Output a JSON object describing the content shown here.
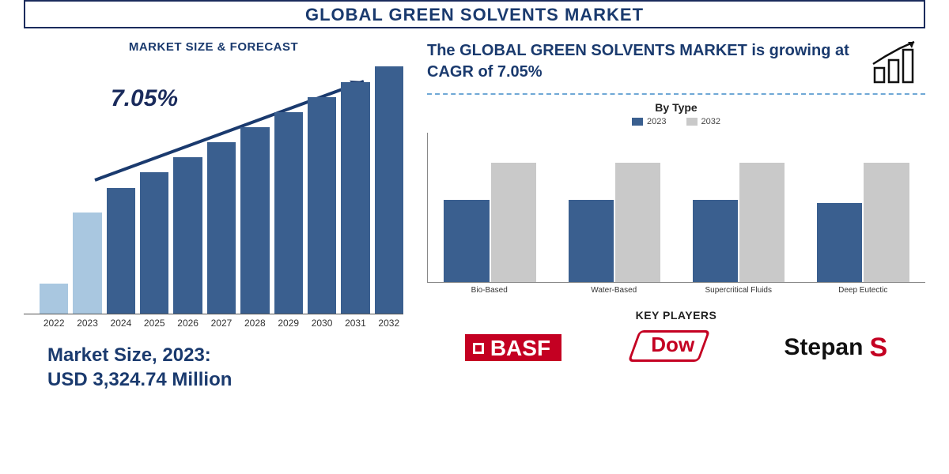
{
  "title": "GLOBAL GREEN SOLVENTS MARKET",
  "colors": {
    "primary_text": "#1a3a6e",
    "border": "#1a2b5c",
    "bar_dark": "#3a5f8f",
    "bar_light": "#a9c7e0",
    "type_bar_2023": "#3a5f8f",
    "type_bar_2032": "#c9c9c9",
    "dash": "#6fa8d6",
    "basf_red": "#c40022",
    "dow_red": "#c40022",
    "stepan_black": "#111111",
    "stepan_red": "#c40022",
    "background": "#ffffff"
  },
  "forecast": {
    "section_title": "MARKET SIZE & FORECAST",
    "cagr_label": "7.05%",
    "years": [
      "2022",
      "2023",
      "2024",
      "2025",
      "2026",
      "2027",
      "2028",
      "2029",
      "2030",
      "2031",
      "2032"
    ],
    "bar_heights_pct": [
      12,
      40,
      50,
      56,
      62,
      68,
      74,
      80,
      86,
      92,
      98
    ],
    "bar_colors": [
      "#a9c7e0",
      "#a9c7e0",
      "#3a5f8f",
      "#3a5f8f",
      "#3a5f8f",
      "#3a5f8f",
      "#3a5f8f",
      "#3a5f8f",
      "#3a5f8f",
      "#3a5f8f",
      "#3a5f8f"
    ],
    "arrow_color": "#1a3a6e",
    "market_size_line1": "Market Size, 2023:",
    "market_size_line2": "USD 3,324.74 Million"
  },
  "headline": {
    "text_prefix": "The ",
    "text_bold": "GLOBAL GREEN SOLVENTS MARKET",
    "text_suffix": " is growing at CAGR of 7.05%"
  },
  "by_type": {
    "title": "By Type",
    "legend": [
      {
        "label": "2023",
        "color": "#3a5f8f"
      },
      {
        "label": "2032",
        "color": "#c9c9c9"
      }
    ],
    "categories": [
      "Bio-Based",
      "Water-Based",
      "Supercritical Fluids",
      "Deep Eutectic"
    ],
    "values_2023_pct": [
      55,
      55,
      55,
      53
    ],
    "values_2032_pct": [
      80,
      80,
      80,
      80
    ]
  },
  "key_players": {
    "title": "KEY PLAYERS",
    "logos": [
      {
        "name": "BASF",
        "text": "BASF"
      },
      {
        "name": "Dow",
        "text": "Dow"
      },
      {
        "name": "Stepan",
        "text": "Stepan"
      }
    ]
  }
}
